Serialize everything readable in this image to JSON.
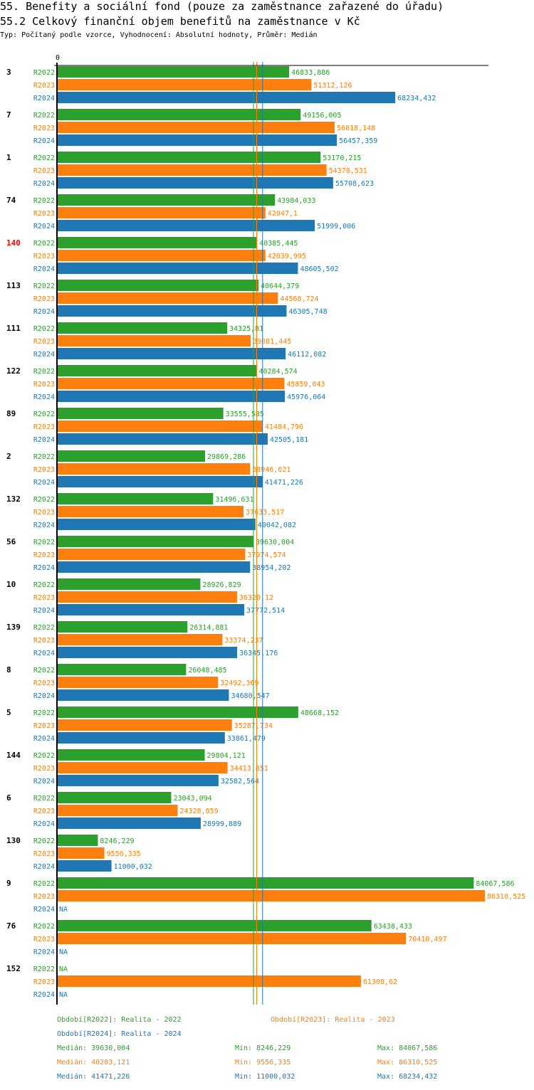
{
  "header": {
    "title": "55. Benefity a sociální fond (pouze za zaměstnance zařazené do úřadu)",
    "subtitle": "55.2 Celkový finanční objem benefitů na zaměstnance v Kč",
    "meta": "Typ: Počítaný podle vzorce, Vyhodnocení: Absolutní hodnoty, Průměr: Medián"
  },
  "chart_data": {
    "type": "bar",
    "orientation": "horizontal",
    "title": "55.2 Celkový finanční objem benefitů na zaměstnance v Kč",
    "xlabel": "",
    "ylabel": "",
    "x_tick_labels": [
      "0"
    ],
    "xlim": [
      0,
      86310.525
    ],
    "grid": false,
    "highlight_category": "140",
    "categories": [
      "3",
      "7",
      "1",
      "74",
      "140",
      "113",
      "111",
      "122",
      "89",
      "2",
      "132",
      "56",
      "10",
      "139",
      "8",
      "5",
      "144",
      "6",
      "130",
      "9",
      "76",
      "152"
    ],
    "series": [
      {
        "name": "R2022",
        "color": "#2ca02c",
        "values": [
          46833.886,
          49156.005,
          53170.215,
          43984.033,
          40385.445,
          40644.379,
          34325.81,
          40284.574,
          33555.585,
          29869.286,
          31496.631,
          39630.004,
          28926.829,
          26314.881,
          26048.485,
          48668.152,
          29804.121,
          23043.094,
          8246.229,
          84067.586,
          63438.433,
          null
        ],
        "labels": [
          "46833,886",
          "49156,005",
          "53170,215",
          "43984,033",
          "40385,445",
          "40644,379",
          "34325,81",
          "40284,574",
          "33555,585",
          "29869,286",
          "31496,631",
          "39630,004",
          "28926,829",
          "26314,881",
          "26048,485",
          "48668,152",
          "29804,121",
          "23043,094",
          "8246,229",
          "84067,586",
          "63438,433",
          "NA"
        ]
      },
      {
        "name": "R2023",
        "color": "#ff7f0e",
        "values": [
          51312.126,
          56018.148,
          54378.531,
          42047.1,
          42039.995,
          44568.724,
          39081.445,
          45859.043,
          41484.796,
          38946.621,
          37633.517,
          37974.574,
          36320.12,
          33374.237,
          32492.369,
          35287.734,
          34413.851,
          24328.859,
          9556.335,
          86310.525,
          70410.497,
          61308.62
        ],
        "labels": [
          "51312,126",
          "56018,148",
          "54378,531",
          "42047,1",
          "42039,995",
          "44568,724",
          "39081,445",
          "45859,043",
          "41484,796",
          "38946,621",
          "37633,517",
          "37974,574",
          "36320,12",
          "33374,237",
          "32492,369",
          "35287,734",
          "34413,851",
          "24328,859",
          "9556,335",
          "86310,525",
          "70410,497",
          "61308,62"
        ]
      },
      {
        "name": "R2024",
        "color": "#1f77b4",
        "values": [
          68234.432,
          56457.359,
          55708.623,
          51999.006,
          48605.502,
          46305.748,
          46112.082,
          45976.064,
          42505.181,
          41471.226,
          40042.082,
          38954.202,
          37772.514,
          36345.176,
          34680.547,
          33861.479,
          32582.564,
          28999.889,
          11000.032,
          null,
          null,
          null
        ],
        "labels": [
          "68234,432",
          "56457,359",
          "55708,623",
          "51999,006",
          "48605,502",
          "46305,748",
          "46112,082",
          "45976,064",
          "42505,181",
          "41471,226",
          "40042,082",
          "38954,202",
          "37772,514",
          "36345,176",
          "34680,547",
          "33861,479",
          "32582,564",
          "28999,889",
          "11000,032",
          "NA",
          "NA",
          "NA"
        ]
      }
    ],
    "median_lines": [
      39630.004,
      40283.121,
      41471.226
    ],
    "legend": {
      "placement": "bottom",
      "periods": [
        "Období[R2022]: Realita - 2022",
        "Období[R2023]: Realita - 2023",
        "Období[R2024]: Realita - 2024"
      ],
      "stats": [
        {
          "median": "Medián: 39630,004",
          "min": "Min: 8246,229",
          "max": "Max: 84067,586"
        },
        {
          "median": "Medián: 40283,121",
          "min": "Min: 9556,335",
          "max": "Max: 86310,525"
        },
        {
          "median": "Medián: 41471,226",
          "min": "Min: 11000,032",
          "max": "Max: 68234,432"
        }
      ]
    }
  }
}
